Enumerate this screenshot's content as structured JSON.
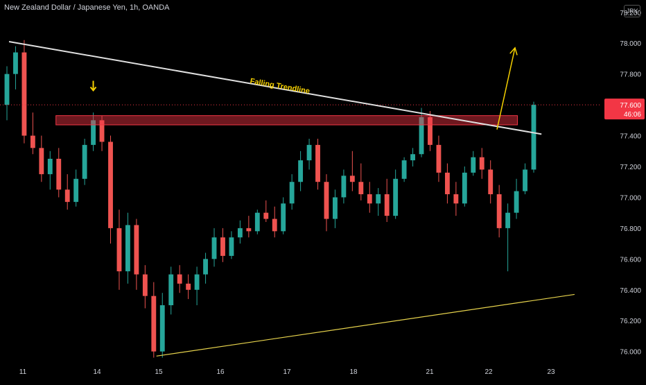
{
  "header": {
    "title": "New Zealand Dollar / Japanese Yen, 1h, OANDA",
    "currency": "JPY"
  },
  "chart_data": {
    "type": "candlestick",
    "symbol": "New Zealand Dollar / Japanese Yen",
    "interval": "1h",
    "source": "OANDA",
    "currency": "JPY",
    "y_axis": {
      "ticks": [
        "78.200",
        "78.000",
        "77.800",
        "77.600",
        "77.400",
        "77.200",
        "77.000",
        "76.800",
        "76.600",
        "76.400",
        "76.200",
        "76.000"
      ],
      "range": [
        75.94,
        78.28
      ],
      "position": "right"
    },
    "x_axis": {
      "ticks": [
        "11",
        "14",
        "15",
        "16",
        "17",
        "18",
        "21",
        "22",
        "23"
      ]
    },
    "last_price": {
      "label": "77.600",
      "countdown": "46:06",
      "value": 77.6,
      "color": "#f23645"
    },
    "annotations": {
      "trendline_label": "Falling Trendline",
      "falling_trendline": {
        "from": [
          0.015,
          78.01
        ],
        "to": [
          0.9,
          77.41
        ],
        "color": "#e0e0e0"
      },
      "rising_trendline": {
        "from": [
          0.26,
          75.97
        ],
        "to": [
          0.955,
          76.37
        ],
        "color": "#e8d44d"
      },
      "resistance_zone": {
        "x_from": 0.093,
        "x_to": 0.86,
        "y_top": 77.53,
        "y_bottom": 77.47,
        "color": "#f23645"
      },
      "down_arrow": {
        "x": 0.155,
        "y": 77.72,
        "color": "#f5d000"
      },
      "breakout_arrow": {
        "from": [
          0.826,
          77.44
        ],
        "to": [
          0.856,
          77.97
        ],
        "color": "#f5d000"
      }
    },
    "colors": {
      "up": "#26a69a",
      "down": "#ef5350",
      "background": "#000000",
      "axis_text": "#d1d4dc"
    },
    "series": [
      {
        "kind": "ohlc",
        "points": [
          [
            77.6,
            77.85,
            77.5,
            77.8
          ],
          [
            77.8,
            77.98,
            77.7,
            77.94
          ],
          [
            77.94,
            78.02,
            77.35,
            77.4
          ],
          [
            77.4,
            77.55,
            77.28,
            77.32
          ],
          [
            77.32,
            77.4,
            77.1,
            77.15
          ],
          [
            77.15,
            77.3,
            77.05,
            77.25
          ],
          [
            77.25,
            77.32,
            77.0,
            77.05
          ],
          [
            77.05,
            77.15,
            76.92,
            76.97
          ],
          [
            76.97,
            77.18,
            76.94,
            77.12
          ],
          [
            77.12,
            77.38,
            77.08,
            77.34
          ],
          [
            77.34,
            77.55,
            77.3,
            77.5
          ],
          [
            77.5,
            77.53,
            77.3,
            77.36
          ],
          [
            77.36,
            77.4,
            76.7,
            76.8
          ],
          [
            76.8,
            76.92,
            76.4,
            76.52
          ],
          [
            76.52,
            76.9,
            76.44,
            76.82
          ],
          [
            76.82,
            76.86,
            76.4,
            76.5
          ],
          [
            76.5,
            76.56,
            76.28,
            76.36
          ],
          [
            76.36,
            76.45,
            75.96,
            76.0
          ],
          [
            76.0,
            76.38,
            75.96,
            76.3
          ],
          [
            76.3,
            76.55,
            76.24,
            76.5
          ],
          [
            76.5,
            76.56,
            76.38,
            76.44
          ],
          [
            76.44,
            76.5,
            76.34,
            76.4
          ],
          [
            76.4,
            76.55,
            76.3,
            76.5
          ],
          [
            76.5,
            76.64,
            76.44,
            76.6
          ],
          [
            76.6,
            76.8,
            76.55,
            76.74
          ],
          [
            76.74,
            76.8,
            76.58,
            76.62
          ],
          [
            76.62,
            76.78,
            76.6,
            76.74
          ],
          [
            76.74,
            76.85,
            76.7,
            76.8
          ],
          [
            76.8,
            76.88,
            76.74,
            76.78
          ],
          [
            76.78,
            76.92,
            76.76,
            76.9
          ],
          [
            76.9,
            76.98,
            76.84,
            76.86
          ],
          [
            76.86,
            76.94,
            76.74,
            76.78
          ],
          [
            76.78,
            77.0,
            76.76,
            76.96
          ],
          [
            76.96,
            77.15,
            76.92,
            77.1
          ],
          [
            77.1,
            77.3,
            77.04,
            77.24
          ],
          [
            77.24,
            77.38,
            77.18,
            77.34
          ],
          [
            77.34,
            77.38,
            77.05,
            77.1
          ],
          [
            77.1,
            77.15,
            76.78,
            76.86
          ],
          [
            76.86,
            77.05,
            76.8,
            77.0
          ],
          [
            77.0,
            77.18,
            76.96,
            77.14
          ],
          [
            77.14,
            77.3,
            77.04,
            77.1
          ],
          [
            77.1,
            77.22,
            76.98,
            77.02
          ],
          [
            77.02,
            77.1,
            76.9,
            76.96
          ],
          [
            76.96,
            77.06,
            76.88,
            77.02
          ],
          [
            77.02,
            77.12,
            76.84,
            76.88
          ],
          [
            76.88,
            77.18,
            76.86,
            77.12
          ],
          [
            77.12,
            77.26,
            77.1,
            77.24
          ],
          [
            77.24,
            77.32,
            77.2,
            77.28
          ],
          [
            77.28,
            77.58,
            77.26,
            77.52
          ],
          [
            77.52,
            77.56,
            77.3,
            77.34
          ],
          [
            77.34,
            77.4,
            77.1,
            77.16
          ],
          [
            77.16,
            77.22,
            76.96,
            77.02
          ],
          [
            77.02,
            77.1,
            76.88,
            76.96
          ],
          [
            76.96,
            77.2,
            76.94,
            77.16
          ],
          [
            77.16,
            77.3,
            77.14,
            77.26
          ],
          [
            77.26,
            77.32,
            77.12,
            77.18
          ],
          [
            77.18,
            77.24,
            76.96,
            77.02
          ],
          [
            77.02,
            77.08,
            76.74,
            76.8
          ],
          [
            76.8,
            76.96,
            76.52,
            76.9
          ],
          [
            76.9,
            77.12,
            76.86,
            77.04
          ],
          [
            77.04,
            77.22,
            77.02,
            77.18
          ],
          [
            77.18,
            77.62,
            77.16,
            77.6
          ]
        ]
      }
    ]
  }
}
